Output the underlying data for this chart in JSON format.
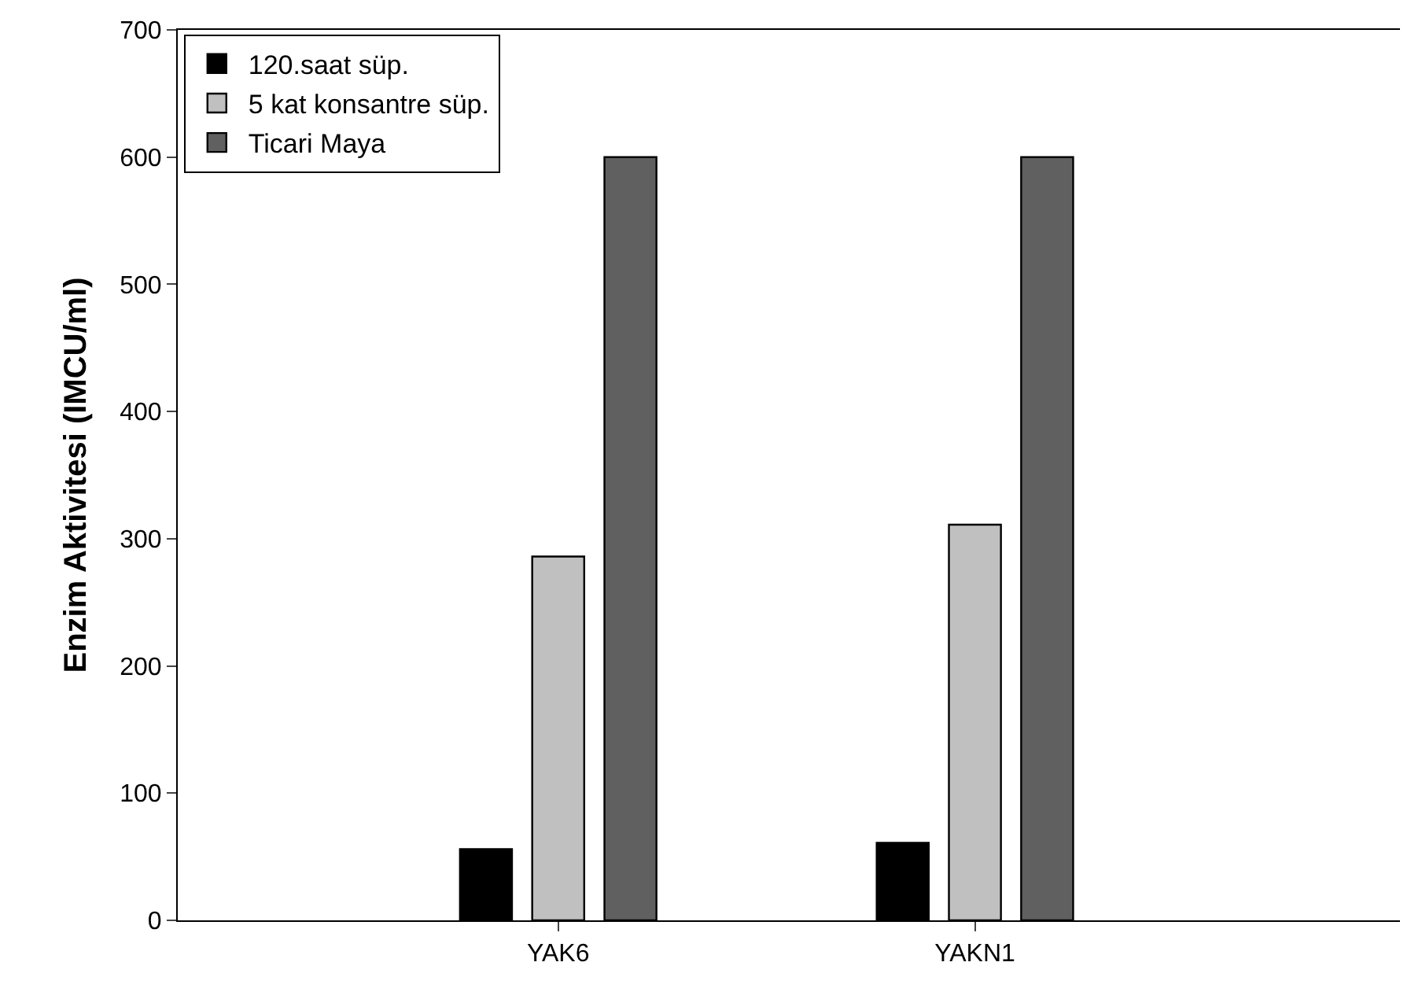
{
  "chart_data": {
    "type": "bar",
    "ylabel": "Enzim Aktivitesi (IMCU/ml)",
    "categories": [
      "YAK6",
      "YAKN1"
    ],
    "series": [
      {
        "name": "120.saat süp.",
        "color": "#000000",
        "values": [
          56,
          61
        ]
      },
      {
        "name": "5 kat konsantre süp.",
        "color": "#c0c0c0",
        "values": [
          286,
          311
        ]
      },
      {
        "name": "Ticari Maya",
        "color": "#606060",
        "values": [
          600,
          600
        ]
      }
    ],
    "ylim": [
      0,
      700
    ],
    "yticks": [
      0,
      100,
      200,
      300,
      400,
      500,
      600,
      700
    ],
    "legend": "top left"
  }
}
